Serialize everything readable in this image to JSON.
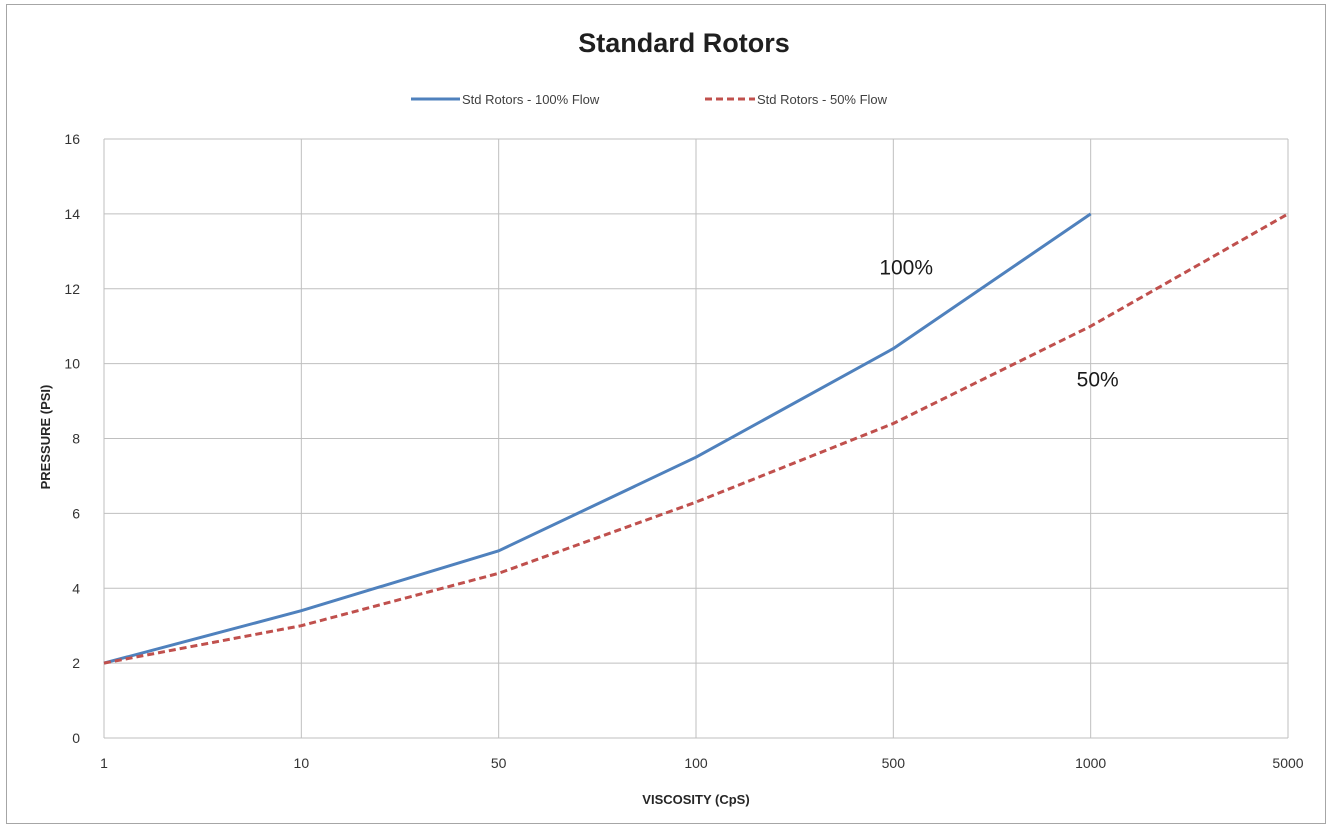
{
  "chart_data": {
    "type": "line",
    "title": "Standard Rotors",
    "xlabel": "VISCOSITY (CpS)",
    "ylabel": "PRESSURE (PSI)",
    "x_tick_labels": [
      "1",
      "10",
      "50",
      "100",
      "500",
      "1000",
      "5000"
    ],
    "y_ticks": [
      0,
      2,
      4,
      6,
      8,
      10,
      12,
      14,
      16
    ],
    "ylim": [
      0,
      16
    ],
    "x_scale": "categorical, evenly spaced",
    "grid": true,
    "legend_position": "top",
    "series": [
      {
        "name": "Std Rotors - 100% Flow",
        "color": "#4f81bd",
        "dash": "solid",
        "x": [
          "1",
          "10",
          "50",
          "100",
          "500",
          "1000"
        ],
        "values": [
          2,
          3.4,
          5.0,
          7.5,
          10.4,
          14.0
        ]
      },
      {
        "name": "Std Rotors - 50% Flow",
        "color": "#c0504d",
        "dash": "dashed",
        "x": [
          "1",
          "10",
          "50",
          "100",
          "500",
          "1000",
          "5000"
        ],
        "values": [
          2,
          3.0,
          4.4,
          6.3,
          8.4,
          11.0,
          14.0
        ]
      }
    ],
    "annotations": [
      {
        "text": "100%",
        "x": "500",
        "y": 12.6
      },
      {
        "text": "50%",
        "x": "1000",
        "y": 9.6
      }
    ]
  }
}
